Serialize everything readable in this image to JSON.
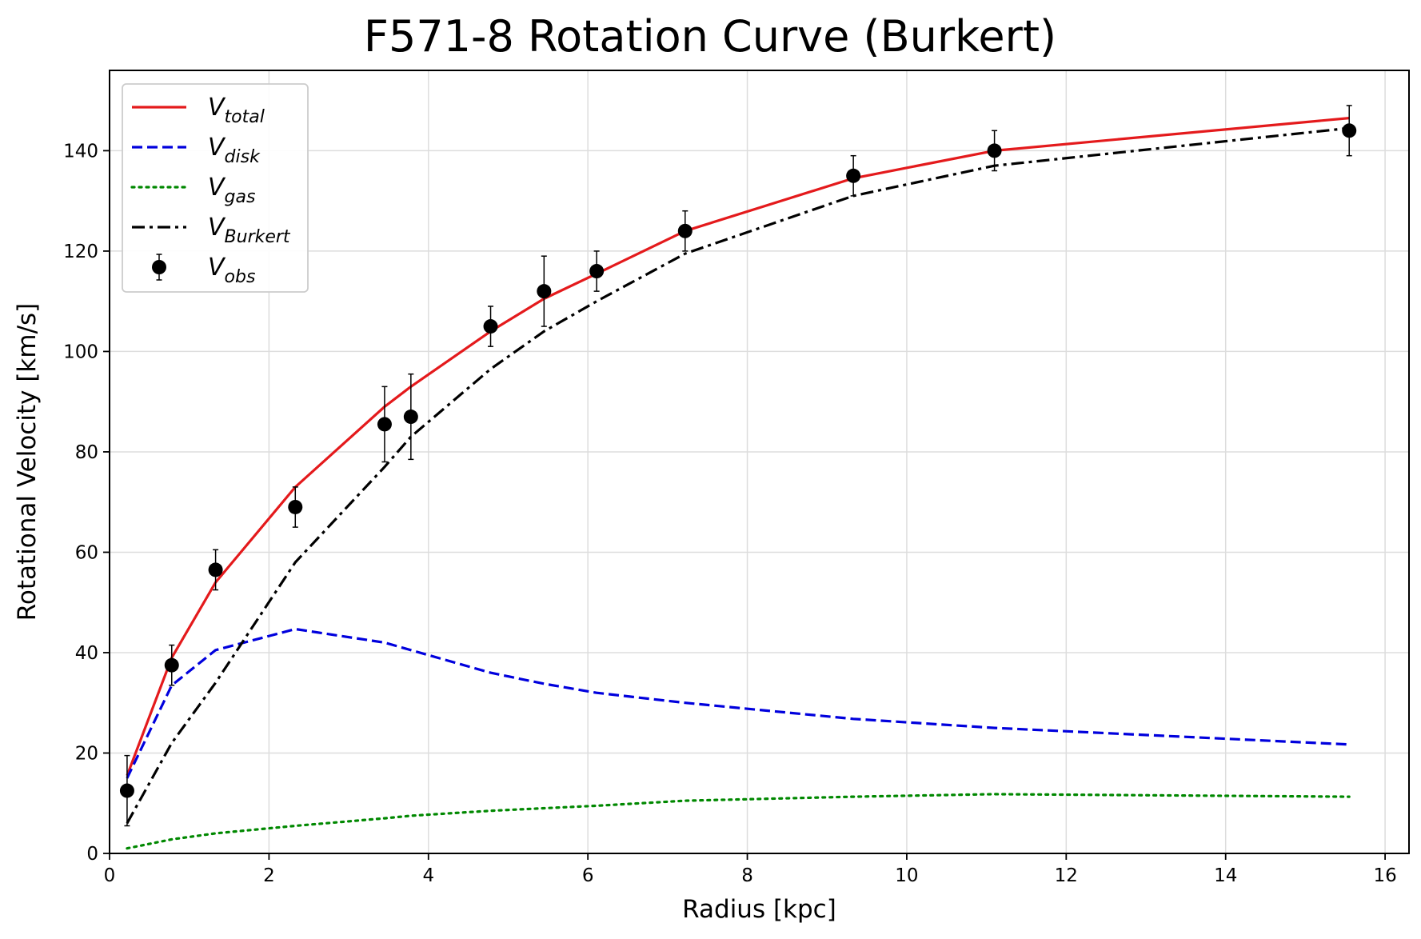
{
  "chart_data": {
    "type": "line",
    "title": "F571-8 Rotation Curve (Burkert)",
    "xlabel": "Radius [kpc]",
    "ylabel": "Rotational Velocity [km/s]",
    "xlim": [
      0,
      16.3
    ],
    "ylim": [
      0,
      156
    ],
    "xticks": [
      0,
      2,
      4,
      6,
      8,
      10,
      12,
      14,
      16
    ],
    "yticks": [
      0,
      20,
      40,
      60,
      80,
      100,
      120,
      140
    ],
    "grid": true,
    "legend_position": "top-left",
    "x": [
      0.22,
      0.78,
      1.33,
      2.33,
      3.45,
      3.78,
      4.78,
      5.45,
      6.11,
      7.22,
      9.33,
      11.1,
      15.55
    ],
    "series": [
      {
        "name": "V",
        "subscript": "total",
        "color": "#e41a1c",
        "style": "solid",
        "values": [
          15.5,
          39.0,
          54.0,
          73.0,
          89.0,
          93.0,
          104.0,
          110.5,
          115.5,
          124.0,
          134.5,
          140.0,
          146.5
        ]
      },
      {
        "name": "V",
        "subscript": "disk",
        "color": "#0000dd",
        "style": "dashed",
        "values": [
          15.0,
          33.5,
          40.5,
          44.7,
          42.0,
          40.5,
          36.0,
          33.8,
          32.0,
          30.0,
          26.8,
          25.0,
          21.7
        ]
      },
      {
        "name": "V",
        "subscript": "gas",
        "color": "#008800",
        "style": "dotted",
        "values": [
          1.0,
          2.8,
          4.0,
          5.5,
          7.0,
          7.5,
          8.5,
          9.0,
          9.5,
          10.5,
          11.3,
          11.8,
          11.3
        ]
      },
      {
        "name": "V",
        "subscript": "Burkert",
        "color": "#000000",
        "style": "dashdot",
        "values": [
          6.0,
          22.0,
          34.0,
          58.0,
          77.0,
          83.0,
          96.5,
          104.0,
          110.0,
          119.5,
          131.0,
          137.0,
          144.5
        ]
      }
    ],
    "observed": {
      "name": "V",
      "subscript": "obs",
      "color": "#000000",
      "values": [
        12.5,
        37.5,
        56.5,
        69.0,
        85.5,
        87.0,
        105.0,
        112.0,
        116.0,
        124.0,
        135.0,
        140.0,
        144.0
      ],
      "errors": [
        7.0,
        4.0,
        4.0,
        4.0,
        7.5,
        8.5,
        4.0,
        7.0,
        4.0,
        4.0,
        4.0,
        4.0,
        5.0
      ]
    }
  }
}
